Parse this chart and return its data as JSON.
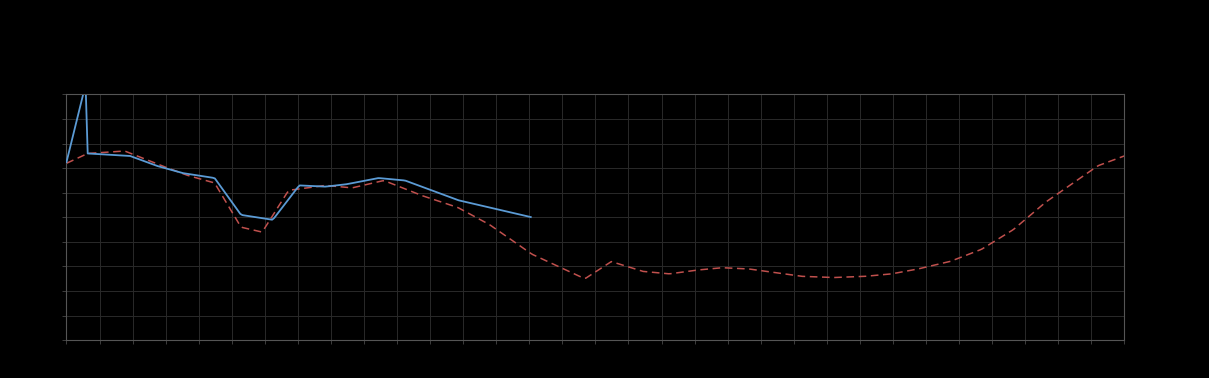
{
  "background_color": "#000000",
  "plot_bg_color": "#000000",
  "grid_color": "#2a2a2a",
  "axis_color": "#555555",
  "blue_line_color": "#5b9bd5",
  "red_line_color": "#c0504d",
  "figsize": [
    12.09,
    3.78
  ],
  "dpi": 100,
  "xlim": [
    0,
    1
  ],
  "ylim": [
    0,
    1
  ],
  "n_points": 500
}
